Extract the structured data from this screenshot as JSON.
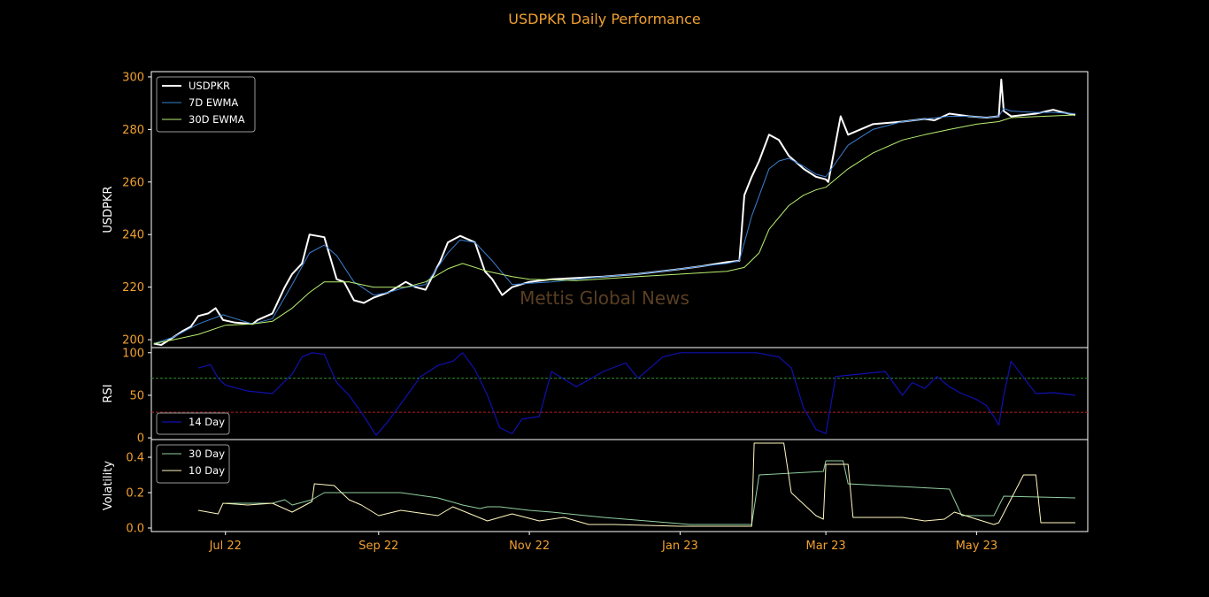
{
  "title": "USDPKR Daily Performance",
  "watermark": "Mettis Global News",
  "colors": {
    "background": "#000000",
    "title": "#f0a030",
    "ticks": "#f0a030",
    "frame": "#ffffff",
    "usdpkr": "#ffffff",
    "ewma7": "#3a7fd0",
    "ewma30": "#b8f070",
    "rsi": "#1010b0",
    "rsi_overbought": "#2e8b2e",
    "rsi_oversold": "#b02020",
    "vol30": "#90d0a0",
    "vol10": "#fff8c0"
  },
  "chart_data": [
    {
      "type": "line",
      "ylabel": "USDPKR",
      "ylim": [
        197,
        302
      ],
      "yticks": [
        200,
        220,
        240,
        260,
        280,
        300
      ],
      "xlim": [
        "2022-06-01",
        "2023-06-15"
      ],
      "legend": "top-left",
      "series": [
        {
          "name": "USDPKR",
          "x": [
            "2022-06-02",
            "2022-06-05",
            "2022-06-10",
            "2022-06-14",
            "2022-06-17",
            "2022-06-20",
            "2022-06-24",
            "2022-06-27",
            "2022-06-30",
            "2022-07-05",
            "2022-07-12",
            "2022-07-14",
            "2022-07-20",
            "2022-07-25",
            "2022-07-28",
            "2022-08-01",
            "2022-08-04",
            "2022-08-10",
            "2022-08-15",
            "2022-08-18",
            "2022-08-22",
            "2022-08-26",
            "2022-08-30",
            "2022-09-05",
            "2022-09-12",
            "2022-09-16",
            "2022-09-20",
            "2022-09-26",
            "2022-09-29",
            "2022-10-04",
            "2022-10-10",
            "2022-10-14",
            "2022-10-17",
            "2022-10-21",
            "2022-10-25",
            "2022-11-01",
            "2022-11-10",
            "2022-12-01",
            "2022-12-15",
            "2023-01-02",
            "2023-01-10",
            "2023-01-20",
            "2023-01-25",
            "2023-01-27",
            "2023-01-30",
            "2023-02-02",
            "2023-02-06",
            "2023-02-10",
            "2023-02-14",
            "2023-02-20",
            "2023-02-25",
            "2023-03-01",
            "2023-03-02",
            "2023-03-07",
            "2023-03-10",
            "2023-03-20",
            "2023-04-01",
            "2023-04-10",
            "2023-04-14",
            "2023-04-20",
            "2023-04-28",
            "2023-05-05",
            "2023-05-10",
            "2023-05-11",
            "2023-05-12",
            "2023-05-15",
            "2023-05-25",
            "2023-06-01",
            "2023-06-05",
            "2023-06-10"
          ],
          "values": [
            198.5,
            198,
            201,
            203.5,
            205,
            209,
            210,
            212,
            207.5,
            206.5,
            206,
            207.5,
            210,
            220,
            225,
            229,
            240,
            239,
            223,
            222,
            215,
            214,
            216,
            218,
            222,
            220,
            219,
            230,
            237,
            239.5,
            237,
            226,
            223,
            217,
            220,
            222,
            223,
            224,
            225,
            227,
            228,
            229.5,
            230,
            255,
            262,
            268,
            278,
            276,
            270,
            265,
            262,
            261,
            260,
            285,
            278,
            282,
            283,
            284,
            283.5,
            286,
            285,
            284.5,
            285,
            299,
            287,
            285,
            286,
            287.5,
            286.5,
            285.5
          ]
        },
        {
          "name": "7D EWMA",
          "x": [
            "2022-06-02",
            "2022-06-10",
            "2022-06-20",
            "2022-06-30",
            "2022-07-12",
            "2022-07-20",
            "2022-07-28",
            "2022-08-04",
            "2022-08-10",
            "2022-08-15",
            "2022-08-22",
            "2022-08-30",
            "2022-09-05",
            "2022-09-12",
            "2022-09-20",
            "2022-09-29",
            "2022-10-04",
            "2022-10-10",
            "2022-10-17",
            "2022-10-25",
            "2022-11-01",
            "2022-11-10",
            "2022-12-01",
            "2022-12-15",
            "2023-01-02",
            "2023-01-10",
            "2023-01-20",
            "2023-01-25",
            "2023-01-30",
            "2023-02-06",
            "2023-02-10",
            "2023-02-14",
            "2023-02-20",
            "2023-02-25",
            "2023-03-01",
            "2023-03-07",
            "2023-03-10",
            "2023-03-20",
            "2023-04-01",
            "2023-04-10",
            "2023-04-20",
            "2023-04-28",
            "2023-05-05",
            "2023-05-10",
            "2023-05-12",
            "2023-05-15",
            "2023-05-25",
            "2023-06-01",
            "2023-06-10"
          ],
          "values": [
            198.5,
            201,
            206,
            209.5,
            206,
            208,
            221,
            233,
            236,
            232,
            222,
            217,
            218,
            220,
            221,
            233,
            238,
            237,
            230,
            221,
            221.5,
            222,
            224,
            225,
            227,
            228,
            229,
            230,
            247,
            265,
            268,
            269,
            266,
            263,
            262,
            270,
            274,
            280,
            283,
            284,
            285,
            285,
            284.5,
            285,
            288,
            287,
            286.5,
            286.5,
            286
          ]
        },
        {
          "name": "30D EWMA",
          "x": [
            "2022-06-02",
            "2022-06-10",
            "2022-06-20",
            "2022-07-01",
            "2022-07-12",
            "2022-07-20",
            "2022-07-28",
            "2022-08-04",
            "2022-08-10",
            "2022-08-20",
            "2022-08-30",
            "2022-09-12",
            "2022-09-20",
            "2022-09-29",
            "2022-10-05",
            "2022-10-15",
            "2022-10-25",
            "2022-11-01",
            "2022-11-20",
            "2022-12-15",
            "2023-01-02",
            "2023-01-20",
            "2023-01-27",
            "2023-02-02",
            "2023-02-06",
            "2023-02-14",
            "2023-02-20",
            "2023-02-25",
            "2023-03-01",
            "2023-03-10",
            "2023-03-20",
            "2023-04-01",
            "2023-04-10",
            "2023-04-20",
            "2023-05-01",
            "2023-05-10",
            "2023-05-15",
            "2023-06-10"
          ],
          "values": [
            198.5,
            200,
            202,
            205.5,
            206,
            207,
            212,
            218,
            222,
            222,
            220,
            220,
            222,
            227,
            229,
            226,
            224,
            223,
            222.5,
            224,
            225,
            226,
            227.5,
            233,
            242,
            251,
            255,
            257,
            258,
            265,
            271,
            276,
            278,
            280,
            282,
            283,
            284.5,
            285.5
          ]
        }
      ]
    },
    {
      "type": "line",
      "ylabel": "RSI",
      "ylim": [
        -2,
        106
      ],
      "yticks": [
        0,
        50,
        100
      ],
      "hlines": [
        70,
        30
      ],
      "legend": "bottom-left",
      "series": [
        {
          "name": "14 Day",
          "x": [
            "2022-06-20",
            "2022-06-25",
            "2022-06-28",
            "2022-07-01",
            "2022-07-10",
            "2022-07-20",
            "2022-07-28",
            "2022-08-01",
            "2022-08-05",
            "2022-08-10",
            "2022-08-15",
            "2022-08-20",
            "2022-08-25",
            "2022-08-31",
            "2022-09-05",
            "2022-09-12",
            "2022-09-18",
            "2022-09-25",
            "2022-10-01",
            "2022-10-05",
            "2022-10-10",
            "2022-10-15",
            "2022-10-20",
            "2022-10-25",
            "2022-10-29",
            "2022-11-05",
            "2022-11-10",
            "2022-11-20",
            "2022-12-01",
            "2022-12-10",
            "2022-12-15",
            "2022-12-25",
            "2023-01-01",
            "2023-01-15",
            "2023-02-01",
            "2023-02-10",
            "2023-02-15",
            "2023-02-20",
            "2023-02-25",
            "2023-03-01",
            "2023-03-05",
            "2023-03-15",
            "2023-03-25",
            "2023-04-01",
            "2023-04-05",
            "2023-04-10",
            "2023-04-15",
            "2023-04-20",
            "2023-04-25",
            "2023-05-01",
            "2023-05-05",
            "2023-05-08",
            "2023-05-10",
            "2023-05-12",
            "2023-05-15",
            "2023-05-25",
            "2023-06-01",
            "2023-06-10"
          ],
          "values": [
            82,
            86,
            70,
            62,
            55,
            52,
            75,
            95,
            100,
            98,
            65,
            50,
            30,
            3,
            20,
            48,
            72,
            85,
            90,
            100,
            80,
            50,
            12,
            5,
            22,
            25,
            78,
            60,
            78,
            88,
            70,
            95,
            100,
            100,
            100,
            95,
            82,
            35,
            10,
            5,
            72,
            75,
            78,
            50,
            65,
            58,
            72,
            60,
            52,
            45,
            38,
            25,
            15,
            50,
            90,
            52,
            53,
            50
          ]
        }
      ]
    },
    {
      "type": "line",
      "ylabel": "Volatility",
      "ylim": [
        -0.02,
        0.5
      ],
      "yticks": [
        0.0,
        0.2,
        0.4
      ],
      "legend": "top-left",
      "series": [
        {
          "name": "30 Day",
          "x": [
            "2022-07-01",
            "2022-07-20",
            "2022-07-25",
            "2022-07-28",
            "2022-08-05",
            "2022-08-10",
            "2022-09-10",
            "2022-09-15",
            "2022-09-25",
            "2022-10-05",
            "2022-10-12",
            "2022-10-15",
            "2022-10-20",
            "2022-11-01",
            "2022-11-10",
            "2022-12-01",
            "2023-01-05",
            "2023-01-20",
            "2023-01-30",
            "2023-02-02",
            "2023-02-28",
            "2023-03-01",
            "2023-03-08",
            "2023-03-10",
            "2023-04-20",
            "2023-04-25",
            "2023-04-28",
            "2023-05-08",
            "2023-05-12",
            "2023-06-10"
          ],
          "values": [
            0.14,
            0.14,
            0.16,
            0.13,
            0.16,
            0.2,
            0.2,
            0.19,
            0.17,
            0.13,
            0.11,
            0.12,
            0.12,
            0.1,
            0.09,
            0.06,
            0.02,
            0.02,
            0.02,
            0.3,
            0.32,
            0.38,
            0.38,
            0.25,
            0.22,
            0.07,
            0.07,
            0.07,
            0.18,
            0.17
          ]
        },
        {
          "name": "10 Day",
          "x": [
            "2022-06-20",
            "2022-06-28",
            "2022-06-30",
            "2022-07-10",
            "2022-07-20",
            "2022-07-28",
            "2022-08-05",
            "2022-08-06",
            "2022-08-14",
            "2022-08-20",
            "2022-08-25",
            "2022-09-01",
            "2022-09-10",
            "2022-09-20",
            "2022-09-25",
            "2022-10-01",
            "2022-10-15",
            "2022-10-25",
            "2022-11-05",
            "2022-11-15",
            "2022-11-25",
            "2022-12-05",
            "2023-01-01",
            "2023-01-20",
            "2023-01-30",
            "2023-01-31",
            "2023-02-12",
            "2023-02-15",
            "2023-02-25",
            "2023-02-28",
            "2023-03-01",
            "2023-03-10",
            "2023-03-12",
            "2023-04-01",
            "2023-04-10",
            "2023-04-18",
            "2023-04-22",
            "2023-05-01",
            "2023-05-08",
            "2023-05-10",
            "2023-05-20",
            "2023-05-25",
            "2023-05-27",
            "2023-06-10"
          ],
          "values": [
            0.1,
            0.08,
            0.14,
            0.13,
            0.14,
            0.09,
            0.15,
            0.25,
            0.24,
            0.16,
            0.13,
            0.07,
            0.1,
            0.08,
            0.07,
            0.12,
            0.04,
            0.08,
            0.04,
            0.06,
            0.02,
            0.02,
            0.01,
            0.01,
            0.01,
            0.48,
            0.48,
            0.2,
            0.07,
            0.05,
            0.36,
            0.36,
            0.06,
            0.06,
            0.04,
            0.05,
            0.09,
            0.05,
            0.02,
            0.03,
            0.3,
            0.3,
            0.03,
            0.03
          ]
        }
      ]
    }
  ],
  "xaxis": {
    "ticks": [
      {
        "date": "2022-07-01",
        "label": "Jul 22"
      },
      {
        "date": "2022-09-01",
        "label": "Sep 22"
      },
      {
        "date": "2022-11-01",
        "label": "Nov 22"
      },
      {
        "date": "2023-01-01",
        "label": "Jan 23"
      },
      {
        "date": "2023-03-01",
        "label": "Mar 23"
      },
      {
        "date": "2023-05-01",
        "label": "May 23"
      }
    ]
  }
}
